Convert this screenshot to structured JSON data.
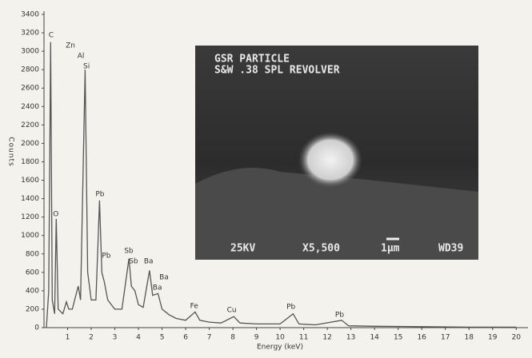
{
  "chart_data": {
    "type": "line",
    "x_label": "Energy (keV)",
    "y_label": "Counts",
    "xlim": [
      0,
      20.5
    ],
    "ylim": [
      0,
      3400
    ],
    "xticks": [
      1,
      2,
      3,
      4,
      5,
      6,
      7,
      8,
      9,
      10,
      11,
      12,
      13,
      14,
      15,
      16,
      17,
      18,
      19,
      20
    ],
    "yticks": [
      0,
      200,
      400,
      600,
      800,
      1000,
      1200,
      1400,
      1600,
      1800,
      2000,
      2200,
      2400,
      2600,
      2800,
      3000,
      3200,
      3400
    ],
    "series": [
      {
        "color": "#555555",
        "x": [
          0.1,
          0.2,
          0.28,
          0.35,
          0.45,
          0.52,
          0.6,
          0.8,
          0.95,
          1.05,
          1.2,
          1.35,
          1.45,
          1.55,
          1.74,
          1.85,
          2.0,
          2.2,
          2.35,
          2.45,
          2.55,
          2.7,
          3.0,
          3.3,
          3.6,
          3.7,
          3.85,
          4.0,
          4.2,
          4.47,
          4.6,
          4.83,
          5.0,
          5.3,
          5.6,
          6.0,
          6.4,
          6.6,
          7.0,
          7.5,
          8.04,
          8.3,
          9.0,
          10.0,
          10.55,
          10.8,
          11.5,
          12.61,
          12.9,
          14,
          16,
          18,
          20
        ],
        "values": [
          0,
          400,
          3100,
          300,
          150,
          1180,
          200,
          150,
          280,
          200,
          200,
          350,
          450,
          300,
          2800,
          600,
          300,
          300,
          1380,
          600,
          500,
          300,
          200,
          200,
          750,
          450,
          400,
          250,
          220,
          620,
          350,
          370,
          200,
          140,
          100,
          80,
          170,
          80,
          60,
          50,
          120,
          50,
          40,
          40,
          150,
          40,
          30,
          80,
          20,
          15,
          10,
          5,
          5
        ]
      }
    ],
    "annotations": [
      {
        "text": "C",
        "x": 0.3,
        "y": 3175
      },
      {
        "text": "Zn",
        "x": 1.12,
        "y": 3060
      },
      {
        "text": "Al",
        "x": 1.56,
        "y": 2950
      },
      {
        "text": "Si",
        "x": 1.8,
        "y": 2835
      },
      {
        "text": "O",
        "x": 0.5,
        "y": 1230
      },
      {
        "text": "Pb",
        "x": 2.37,
        "y": 1448
      },
      {
        "text": "Pb",
        "x": 2.64,
        "y": 780
      },
      {
        "text": "Sb",
        "x": 3.59,
        "y": 833
      },
      {
        "text": "Sb",
        "x": 3.79,
        "y": 720
      },
      {
        "text": "Ba",
        "x": 4.43,
        "y": 720
      },
      {
        "text": "Ba",
        "x": 5.08,
        "y": 546
      },
      {
        "text": "Ba",
        "x": 4.8,
        "y": 434
      },
      {
        "text": "Fe",
        "x": 6.36,
        "y": 234
      },
      {
        "text": "Cu",
        "x": 7.95,
        "y": 190
      },
      {
        "text": "Pb",
        "x": 10.46,
        "y": 225
      },
      {
        "text": "Pb",
        "x": 12.52,
        "y": 140
      }
    ],
    "inset": {
      "lines": [
        "GSR PARTICLE",
        "S&W .38 SPL REVOLVER"
      ],
      "footer": [
        "25KV",
        "X5,500",
        "1μm",
        "WD39"
      ]
    }
  }
}
